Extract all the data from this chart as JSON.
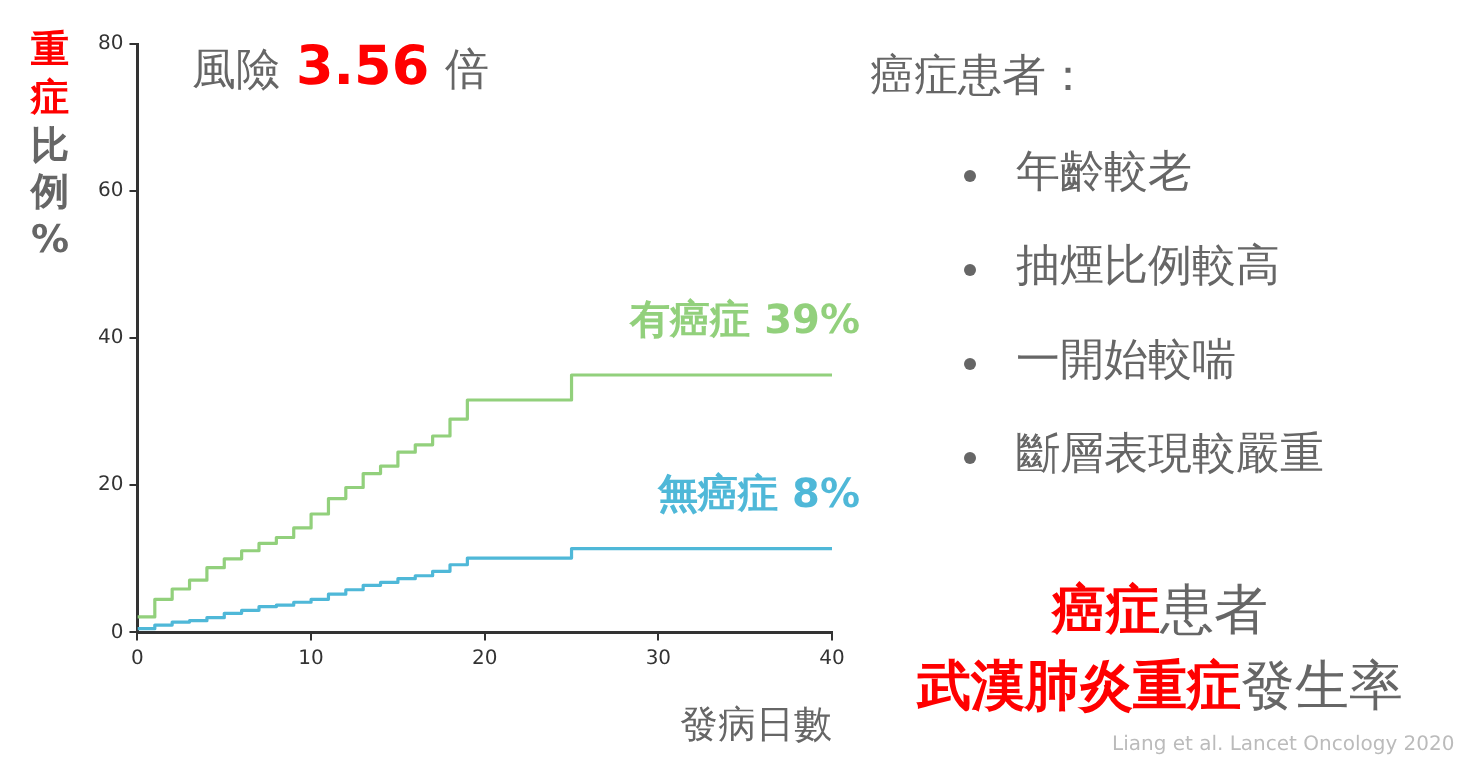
{
  "chart_data": {
    "type": "step",
    "ylabel": "重症比例%",
    "xlabel": "發病日數",
    "x": [
      0,
      1,
      2,
      3,
      4,
      5,
      6,
      7,
      8,
      9,
      10,
      11,
      12,
      13,
      14,
      15,
      16,
      17,
      18,
      19,
      25,
      40
    ],
    "series": [
      {
        "name": "有癌症 39%",
        "color": "#92d07c",
        "values": [
          2.1,
          4.5,
          5.9,
          7.1,
          8.8,
          10.0,
          11.1,
          12.1,
          12.9,
          14.2,
          16.1,
          18.2,
          19.7,
          21.6,
          22.6,
          24.5,
          25.5,
          26.7,
          29.0,
          31.6,
          35.0,
          35.0
        ]
      },
      {
        "name": "無癌症 8%",
        "color": "#4fb8d8",
        "values": [
          0.5,
          1.0,
          1.4,
          1.6,
          2.0,
          2.6,
          3.0,
          3.5,
          3.7,
          4.1,
          4.5,
          5.2,
          5.8,
          6.4,
          6.8,
          7.3,
          7.7,
          8.3,
          9.2,
          10.1,
          11.4,
          11.4
        ]
      }
    ],
    "xlim": [
      0,
      40
    ],
    "xticks": [
      0,
      10,
      20,
      30,
      40
    ],
    "ylim": [
      0,
      80
    ],
    "yticks": [
      0,
      20,
      40,
      60,
      80
    ],
    "grid": false,
    "legend": false,
    "marker": "none",
    "line_style": "solid",
    "annotations": [
      "風險",
      "3.56",
      "倍",
      "癌症患者：",
      "年齡較老",
      "抽煙比例較高",
      "一開始較喘",
      "斷層表現較嚴重",
      "癌症",
      "患者",
      "武漢肺炎重症",
      "發生率",
      "Liang et al. Lancet Oncology 2020"
    ]
  }
}
